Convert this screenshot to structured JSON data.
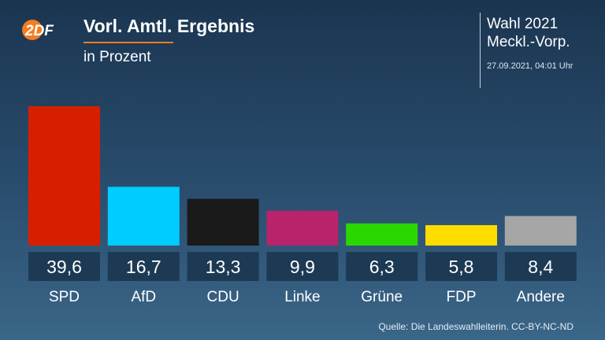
{
  "brand": {
    "logo_text": "2DF",
    "logo_color": "#f47c20"
  },
  "header": {
    "title": "Vorl. Amtl. Ergebnis",
    "subtitle": "in Prozent"
  },
  "election": {
    "title": "Wahl 2021",
    "region": "Meckl.-Vorp.",
    "timestamp": "27.09.2021, 04:01 Uhr"
  },
  "chart_data": {
    "type": "bar",
    "title": "Vorl. Amtl. Ergebnis",
    "subtitle": "in Prozent",
    "categories": [
      "SPD",
      "AfD",
      "CDU",
      "Linke",
      "Grüne",
      "FDP",
      "Andere"
    ],
    "values": [
      39.6,
      16.7,
      13.3,
      9.9,
      6.3,
      5.8,
      8.4
    ],
    "value_labels": [
      "39,6",
      "16,7",
      "13,3",
      "9,9",
      "6,3",
      "5,8",
      "8,4"
    ],
    "colors": [
      "#d71f00",
      "#00ccff",
      "#1a1a1a",
      "#b8236b",
      "#2ad700",
      "#ffdc00",
      "#a6a6a6"
    ],
    "label_box_color": "#1d3a55",
    "ylim": [
      0,
      39.6
    ],
    "grid": false,
    "legend": "none"
  },
  "footer": {
    "source": "Quelle: Die Landeswahlleiterin. CC-BY-NC-ND"
  }
}
